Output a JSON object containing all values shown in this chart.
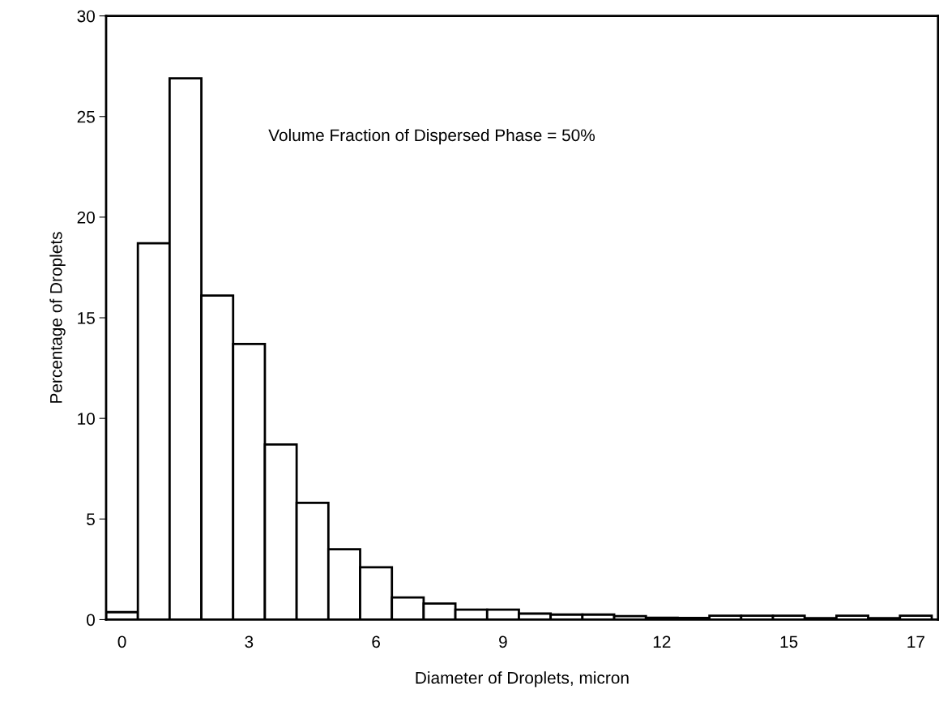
{
  "chart_data": {
    "type": "bar",
    "xlabel": "Diameter of Droplets, micron",
    "ylabel": "Percentage of Droplets",
    "categories": [
      "0",
      null,
      null,
      null,
      "3",
      null,
      null,
      null,
      "6",
      null,
      null,
      null,
      "9",
      null,
      null,
      null,
      null,
      "12",
      null,
      null,
      null,
      "15",
      null,
      null,
      null,
      "17"
    ],
    "values": [
      0.37,
      18.7,
      26.9,
      16.1,
      13.7,
      8.7,
      5.8,
      3.5,
      2.6,
      1.1,
      0.8,
      0.5,
      0.5,
      0.3,
      0.25,
      0.25,
      0.17,
      0.09,
      0.08,
      0.19,
      0.19,
      0.19,
      0.07,
      0.19,
      0.07,
      0.19
    ],
    "color": "#ffffff",
    "ylim": [
      0,
      30
    ],
    "yticks": [
      0,
      5,
      10,
      15,
      20,
      25,
      30
    ],
    "grid": false,
    "annotations": [
      "Volume Fraction of Dispersed Phase = 50%"
    ]
  }
}
